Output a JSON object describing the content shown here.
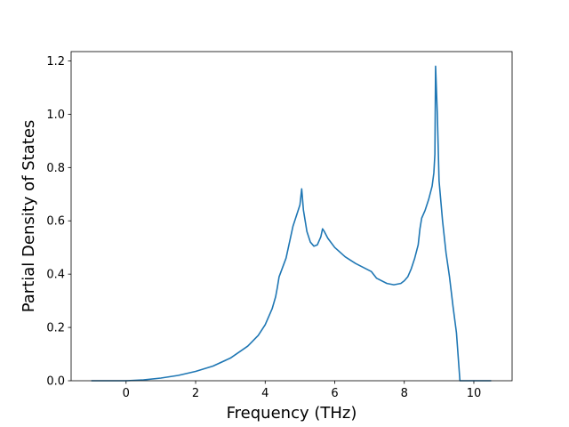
{
  "chart_data": {
    "type": "line",
    "title": "",
    "xlabel": "Frequency (THz)",
    "ylabel": "Partial Density of States",
    "xlim": [
      -1.58,
      11.1
    ],
    "ylim": [
      0.0,
      1.235
    ],
    "xticks": [
      0,
      2,
      4,
      6,
      8,
      10
    ],
    "xtick_labels": [
      "0",
      "2",
      "4",
      "6",
      "8",
      "10"
    ],
    "yticks": [
      0.0,
      0.2,
      0.4,
      0.6,
      0.8,
      1.0,
      1.2
    ],
    "ytick_labels": [
      "0.0",
      "0.2",
      "0.4",
      "0.6",
      "0.8",
      "1.0",
      "1.2"
    ],
    "grid": false,
    "line_color": "#1f77b4",
    "series": [
      {
        "x": [
          -1.0,
          0.0,
          0.5,
          1.0,
          1.5,
          2.0,
          2.5,
          3.0,
          3.5,
          3.8,
          4.0,
          4.2,
          4.3,
          4.35,
          4.4,
          4.6,
          4.8,
          5.0,
          5.05,
          5.1,
          5.2,
          5.3,
          5.4,
          5.5,
          5.6,
          5.65,
          5.7,
          5.8,
          6.0,
          6.3,
          6.6,
          6.9,
          7.05,
          7.2,
          7.5,
          7.7,
          7.9,
          8.0,
          8.1,
          8.2,
          8.3,
          8.4,
          8.45,
          8.5,
          8.6,
          8.7,
          8.8,
          8.85,
          8.88,
          8.9,
          8.95,
          9.0,
          9.1,
          9.2,
          9.3,
          9.4,
          9.5,
          9.6,
          9.8,
          10.0,
          10.3,
          10.5
        ],
        "y": [
          0.0,
          0.0,
          0.003,
          0.01,
          0.02,
          0.035,
          0.055,
          0.085,
          0.13,
          0.17,
          0.21,
          0.27,
          0.315,
          0.35,
          0.39,
          0.46,
          0.58,
          0.66,
          0.72,
          0.64,
          0.56,
          0.52,
          0.505,
          0.51,
          0.54,
          0.57,
          0.56,
          0.535,
          0.5,
          0.465,
          0.44,
          0.42,
          0.41,
          0.385,
          0.365,
          0.36,
          0.365,
          0.375,
          0.39,
          0.42,
          0.46,
          0.51,
          0.57,
          0.61,
          0.64,
          0.68,
          0.73,
          0.78,
          0.85,
          1.18,
          1.0,
          0.75,
          0.6,
          0.48,
          0.39,
          0.28,
          0.18,
          0.0,
          0.0,
          0.0,
          0.0,
          0.0
        ]
      }
    ]
  }
}
